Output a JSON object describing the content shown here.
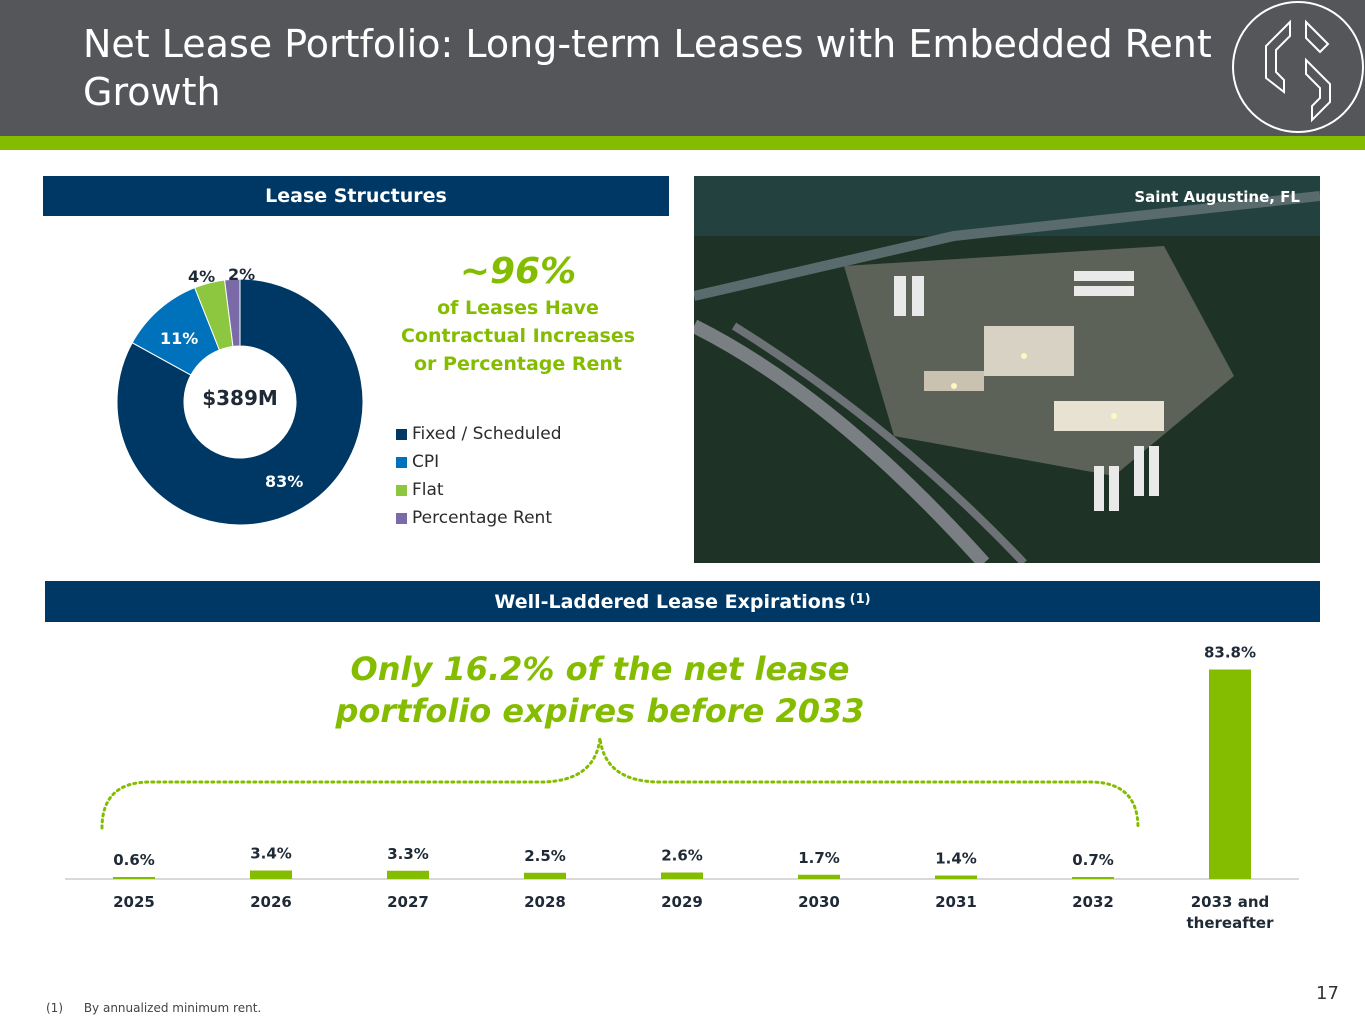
{
  "header": {
    "title": "Net Lease Portfolio: Long-term Leases with Embedded Rent Growth"
  },
  "colors": {
    "header_bg": "#54565a",
    "accent_green": "#84bd00",
    "navy": "#003865",
    "cpi_blue": "#0072bc",
    "flat_green": "#8dc63f",
    "purple": "#7b6aa8"
  },
  "lease_structures": {
    "section_title": "Lease Structures",
    "center_label": "$389M",
    "callout_big": "~96%",
    "callout_text": "of Leases Have Contractual Increases or Percentage Rent"
  },
  "photo": {
    "caption": "Saint Augustine, FL"
  },
  "expirations": {
    "section_title": "Well-Laddered Lease Expirations",
    "section_sup": "(1)",
    "headline": "Only 16.2% of the net lease portfolio expires before 2033"
  },
  "chart_data": [
    {
      "type": "pie",
      "categories": [
        "Fixed / Scheduled",
        "CPI",
        "Flat",
        "Percentage Rent"
      ],
      "values": [
        83,
        11,
        4,
        2
      ],
      "labels": [
        "83%",
        "11%",
        "4%",
        "2%"
      ],
      "colors": [
        "#003865",
        "#0072bc",
        "#8dc63f",
        "#7b6aa8"
      ],
      "legend": "right"
    },
    {
      "type": "bar",
      "categories": [
        "2025",
        "2026",
        "2027",
        "2028",
        "2029",
        "2030",
        "2031",
        "2032",
        "2033 and thereafter"
      ],
      "values": [
        0.6,
        3.4,
        3.3,
        2.5,
        2.6,
        1.7,
        1.4,
        0.7,
        83.8
      ],
      "labels": [
        "0.6%",
        "3.4%",
        "3.3%",
        "2.5%",
        "2.6%",
        "1.7%",
        "1.4%",
        "0.7%",
        "83.8%"
      ],
      "color": "#84bd00",
      "ylim": [
        0,
        100
      ]
    }
  ],
  "footnote": {
    "number": "(1)",
    "text": "By annualized minimum rent."
  },
  "page_number": "17"
}
